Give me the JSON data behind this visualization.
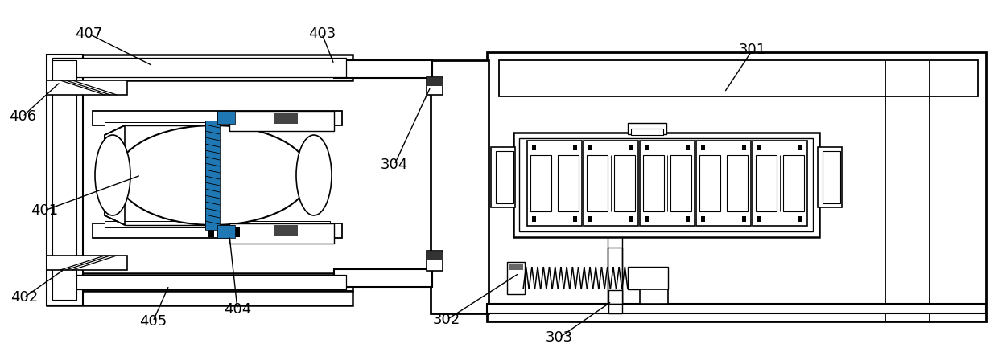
{
  "bg_color": "#ffffff",
  "line_color": "#000000",
  "fig_width": 12.4,
  "fig_height": 4.33,
  "label_fontsize": 13
}
